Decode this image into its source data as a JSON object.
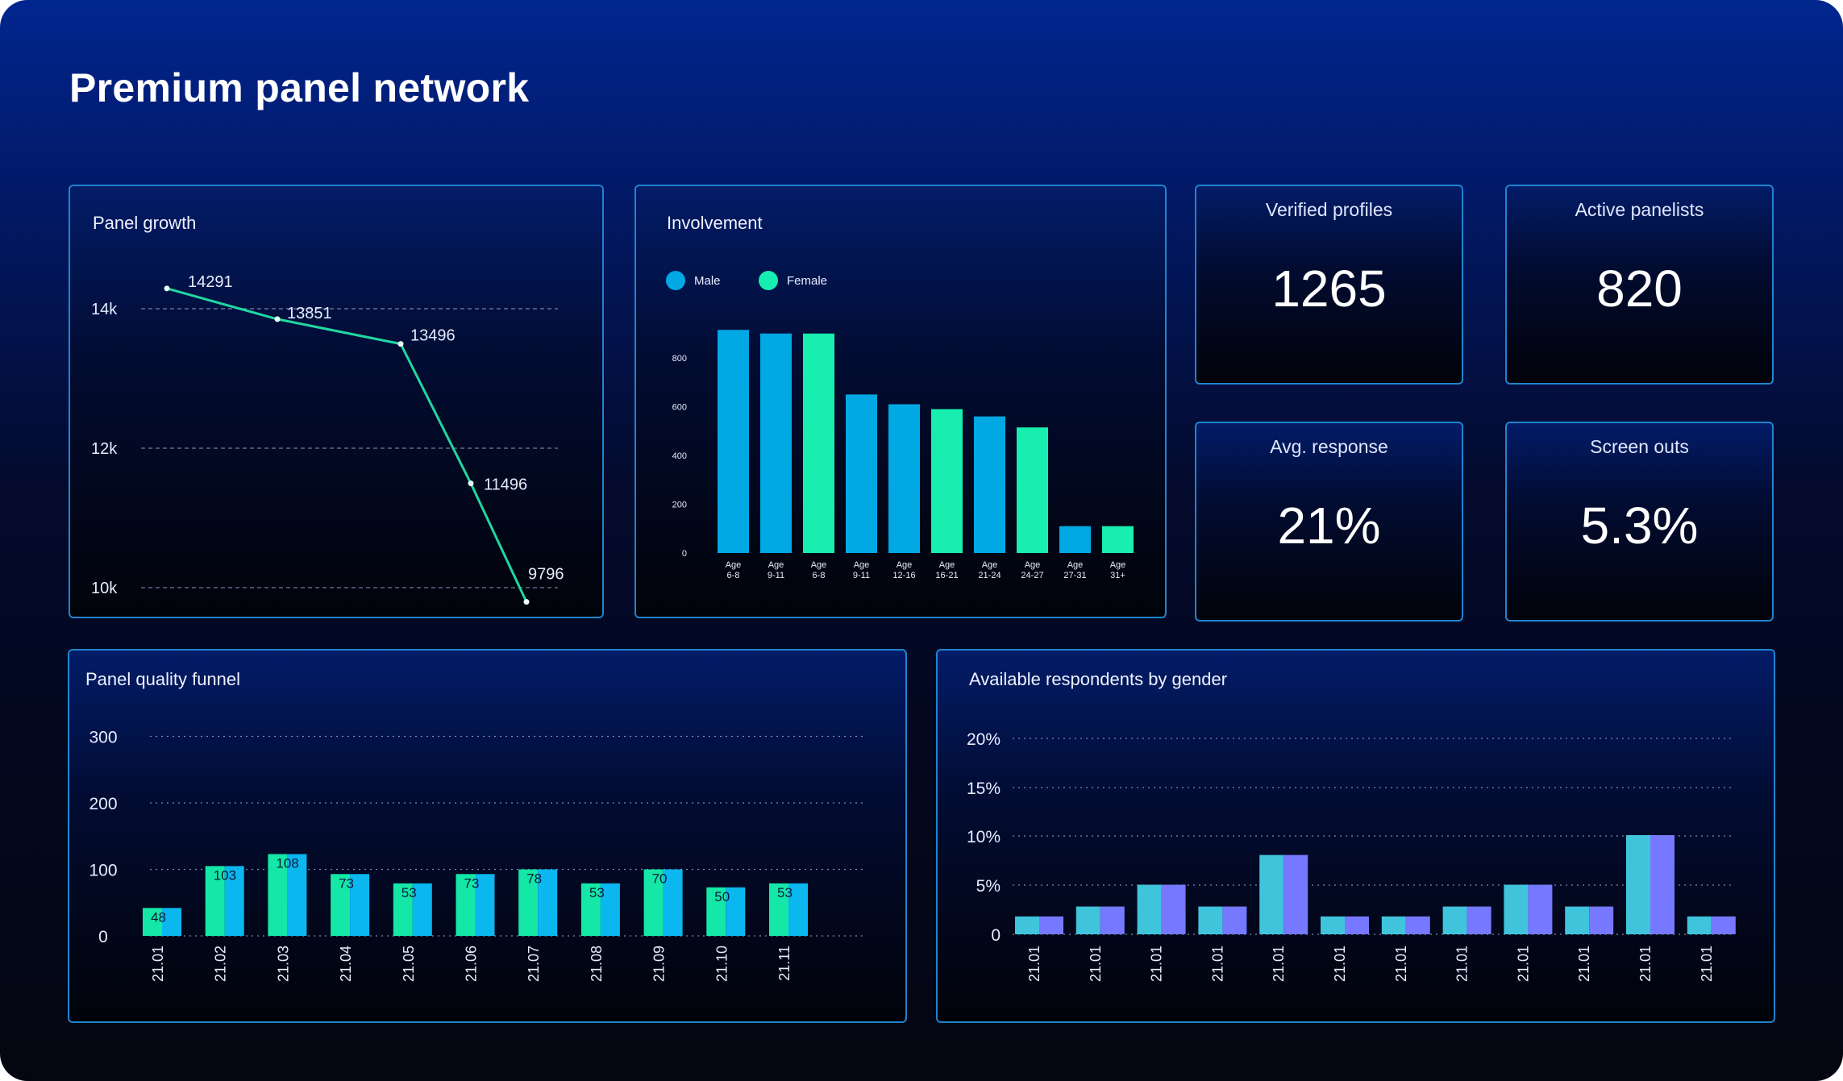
{
  "page": {
    "title": "Premium panel network"
  },
  "colors": {
    "accent_line": "#20d8a0",
    "male": "#00a8e4",
    "female": "#17eeb0",
    "funnel_a": "#14e7a6",
    "funnel_b": "#0bb7ef",
    "gender_a": "#3fc4dc",
    "gender_b": "#7678ff"
  },
  "panel_growth": {
    "title": "Panel growth",
    "chart_data": {
      "type": "line",
      "x": [
        1,
        2,
        3,
        4,
        5
      ],
      "values": [
        14291,
        13851,
        13496,
        11496,
        9796
      ],
      "value_labels": [
        "14291",
        "13851",
        "13496",
        "11496",
        "9796"
      ],
      "yticks": [
        14000,
        12000,
        10000
      ],
      "ytick_labels": [
        "14k",
        "12k",
        "10k"
      ],
      "ylim": [
        9750,
        14650
      ],
      "grid": "dashed"
    }
  },
  "involvement": {
    "title": "Involvement",
    "legend": [
      {
        "label": "Male",
        "color": "#00a8e4"
      },
      {
        "label": "Female",
        "color": "#17eeb0"
      }
    ],
    "chart_data": {
      "type": "bar",
      "categories": [
        [
          "Age",
          "6-8"
        ],
        [
          "Age",
          "9-11"
        ],
        [
          "Age",
          "6-8"
        ],
        [
          "Age",
          "9-11"
        ],
        [
          "Age",
          "12-16"
        ],
        [
          "Age",
          "16-21"
        ],
        [
          "Age",
          "21-24"
        ],
        [
          "Age",
          "24-27"
        ],
        [
          "Age",
          "27-31"
        ],
        [
          "Age",
          "31+"
        ]
      ],
      "values": [
        915,
        900,
        900,
        650,
        610,
        590,
        560,
        515,
        110,
        110
      ],
      "series_of_bar": [
        "male",
        "male",
        "female",
        "male",
        "male",
        "female",
        "male",
        "female",
        "male",
        "female"
      ],
      "yticks": [
        0,
        200,
        400,
        600,
        800
      ],
      "ytick_labels": [
        "0",
        "200",
        "400",
        "600",
        "800"
      ],
      "ylim": [
        0,
        1000
      ]
    }
  },
  "stats": [
    {
      "label": "Verified profiles",
      "value": "1265"
    },
    {
      "label": "Active panelists",
      "value": "820"
    },
    {
      "label": "Avg. response",
      "value": "21%"
    },
    {
      "label": "Screen outs",
      "value": "5.3%"
    }
  ],
  "funnel": {
    "title": "Panel quality funnel",
    "chart_data": {
      "type": "bar",
      "categories": [
        "21.01",
        "21.02",
        "21.03",
        "21.04",
        "21.05",
        "21.06",
        "21.07",
        "21.08",
        "21.09",
        "21.10",
        "21.11"
      ],
      "values": [
        42,
        105,
        123,
        93,
        79,
        93,
        100,
        79,
        100,
        73,
        79
      ],
      "data_labels": [
        "48",
        "103",
        "108",
        "73",
        "53",
        "73",
        "78",
        "53",
        "70",
        "50",
        "53"
      ],
      "yticks": [
        0,
        100,
        200,
        300
      ],
      "ytick_labels": [
        "0",
        "100",
        "200",
        "300"
      ],
      "ylim": [
        0,
        300
      ],
      "grid": "dotted"
    }
  },
  "gender": {
    "title": "Available respondents by gender",
    "chart_data": {
      "type": "bar",
      "categories": [
        "21.01",
        "21.01",
        "21.01",
        "21.01",
        "21.01",
        "21.01",
        "21.01",
        "21.01",
        "21.01",
        "21.01",
        "21.01",
        "21.01"
      ],
      "values": [
        1.8,
        2.8,
        5,
        2.8,
        8,
        1.8,
        1.8,
        2.8,
        5,
        2.8,
        10,
        1.8
      ],
      "yticks": [
        0,
        5,
        10,
        15,
        20
      ],
      "ytick_labels": [
        "0",
        "5%",
        "10%",
        "15%",
        "20%"
      ],
      "ylim": [
        0,
        20
      ],
      "grid": "dotted"
    }
  }
}
